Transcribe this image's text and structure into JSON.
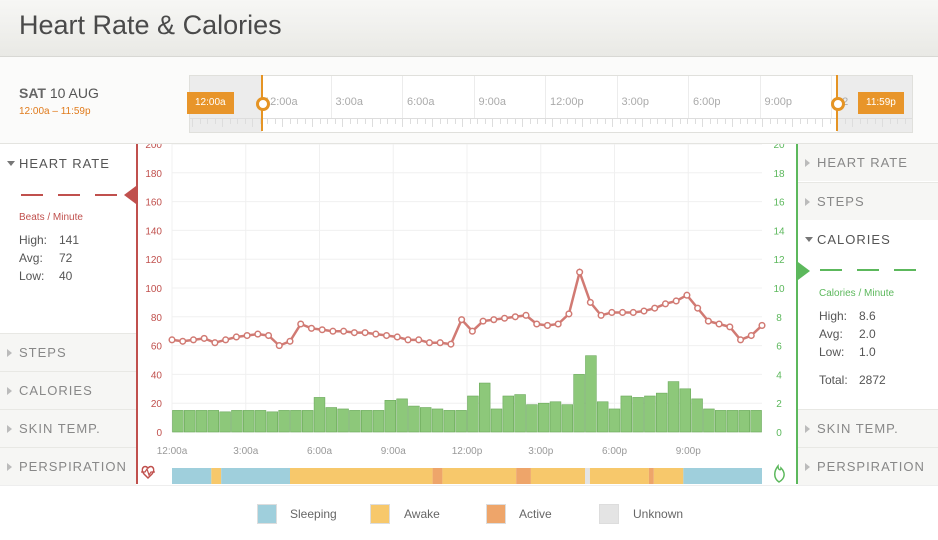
{
  "title": "Heart Rate & Calories",
  "date": {
    "day": "SAT",
    "date": "10 AUG",
    "range": "12:00a – 11:59p"
  },
  "timeline": {
    "labels": [
      "12:00a",
      "3:00a",
      "6:00a",
      "9:00a",
      "12:00p",
      "3:00p",
      "6:00p",
      "9:00p",
      "12"
    ],
    "start_tag": "12:00a",
    "end_tag": "11:59p"
  },
  "left_panel": {
    "active": {
      "label": "HEART RATE",
      "unit": "Beats / Minute",
      "stats": [
        {
          "key": "High:",
          "value": "141"
        },
        {
          "key": "Avg:",
          "value": "72"
        },
        {
          "key": "Low:",
          "value": "40"
        }
      ],
      "color": "#c0504d"
    },
    "sections": [
      "STEPS",
      "CALORIES",
      "SKIN TEMP.",
      "PERSPIRATION"
    ]
  },
  "right_panel": {
    "sections_top": [
      "HEART RATE",
      "STEPS"
    ],
    "active": {
      "label": "CALORIES",
      "unit": "Calories / Minute",
      "stats": [
        {
          "key": "High:",
          "value": "8.6"
        },
        {
          "key": "Avg:",
          "value": "2.0"
        },
        {
          "key": "Low:",
          "value": "1.0"
        }
      ],
      "total": {
        "key": "Total:",
        "value": "2872"
      },
      "color": "#5cb85c"
    },
    "sections_bottom": [
      "SKIN TEMP.",
      "PERSPIRATION"
    ]
  },
  "legend": [
    {
      "label": "Sleeping",
      "color": "#9fcfdc"
    },
    {
      "label": "Awake",
      "color": "#f7c86b"
    },
    {
      "label": "Active",
      "color": "#eea56a"
    },
    {
      "label": "Unknown",
      "color": "#e4e4e4"
    }
  ],
  "icons": {
    "heart": "heart-pulse-icon",
    "flame": "flame-icon"
  },
  "chart_data": {
    "type": "line",
    "x_labels": [
      "12:00a",
      "3:00a",
      "6:00a",
      "9:00a",
      "12:00p",
      "3:00p",
      "6:00p",
      "9:00p"
    ],
    "left_axis": {
      "ticks": [
        0,
        20,
        40,
        60,
        80,
        100,
        120,
        140,
        160,
        180,
        200
      ],
      "ylim": [
        0,
        200
      ]
    },
    "right_axis": {
      "ticks": [
        0,
        2,
        4,
        6,
        8,
        10,
        12,
        14,
        16,
        18,
        20
      ],
      "ylim": [
        0,
        20
      ]
    },
    "series": [
      {
        "type": "line",
        "name": "HEART RATE",
        "axis": "left",
        "color": "#d17a73",
        "values": [
          64,
          63,
          64,
          65,
          62,
          64,
          66,
          67,
          68,
          67,
          60,
          63,
          75,
          72,
          71,
          70,
          70,
          69,
          69,
          68,
          67,
          66,
          64,
          64,
          62,
          62,
          61,
          78,
          70,
          77,
          78,
          79,
          80,
          81,
          75,
          74,
          75,
          82,
          111,
          90,
          81,
          83,
          83,
          83,
          84,
          86,
          89,
          91,
          95,
          86,
          77,
          75,
          73,
          64,
          67,
          74
        ]
      },
      {
        "type": "bar",
        "name": "CALORIES",
        "axis": "right",
        "color": "#8dc87a",
        "values": [
          1.5,
          1.5,
          1.5,
          1.5,
          1.4,
          1.5,
          1.5,
          1.5,
          1.4,
          1.5,
          1.5,
          1.5,
          2.4,
          1.7,
          1.6,
          1.5,
          1.5,
          1.5,
          2.2,
          2.3,
          1.8,
          1.7,
          1.6,
          1.5,
          1.5,
          2.5,
          3.4,
          1.6,
          2.5,
          2.6,
          1.9,
          2.0,
          2.1,
          1.9,
          4.0,
          5.3,
          2.1,
          1.6,
          2.5,
          2.4,
          2.5,
          2.7,
          3.5,
          3.0,
          2.3,
          1.6,
          1.5,
          1.5,
          1.5,
          1.5
        ]
      }
    ],
    "activity_band": [
      {
        "state": "Sleeping",
        "from": 0,
        "to": 8
      },
      {
        "state": "Awake",
        "from": 8,
        "to": 10
      },
      {
        "state": "Sleeping",
        "from": 10,
        "to": 24
      },
      {
        "state": "Awake",
        "from": 24,
        "to": 53
      },
      {
        "state": "Active",
        "from": 53,
        "to": 55
      },
      {
        "state": "Awake",
        "from": 55,
        "to": 70
      },
      {
        "state": "Active",
        "from": 70,
        "to": 73
      },
      {
        "state": "Awake",
        "from": 73,
        "to": 84
      },
      {
        "state": "Unknown",
        "from": 84,
        "to": 85
      },
      {
        "state": "Awake",
        "from": 85,
        "to": 97
      },
      {
        "state": "Active",
        "from": 97,
        "to": 98
      },
      {
        "state": "Awake",
        "from": 98,
        "to": 104
      },
      {
        "state": "Sleeping",
        "from": 104,
        "to": 120
      }
    ],
    "band_range": 120
  }
}
